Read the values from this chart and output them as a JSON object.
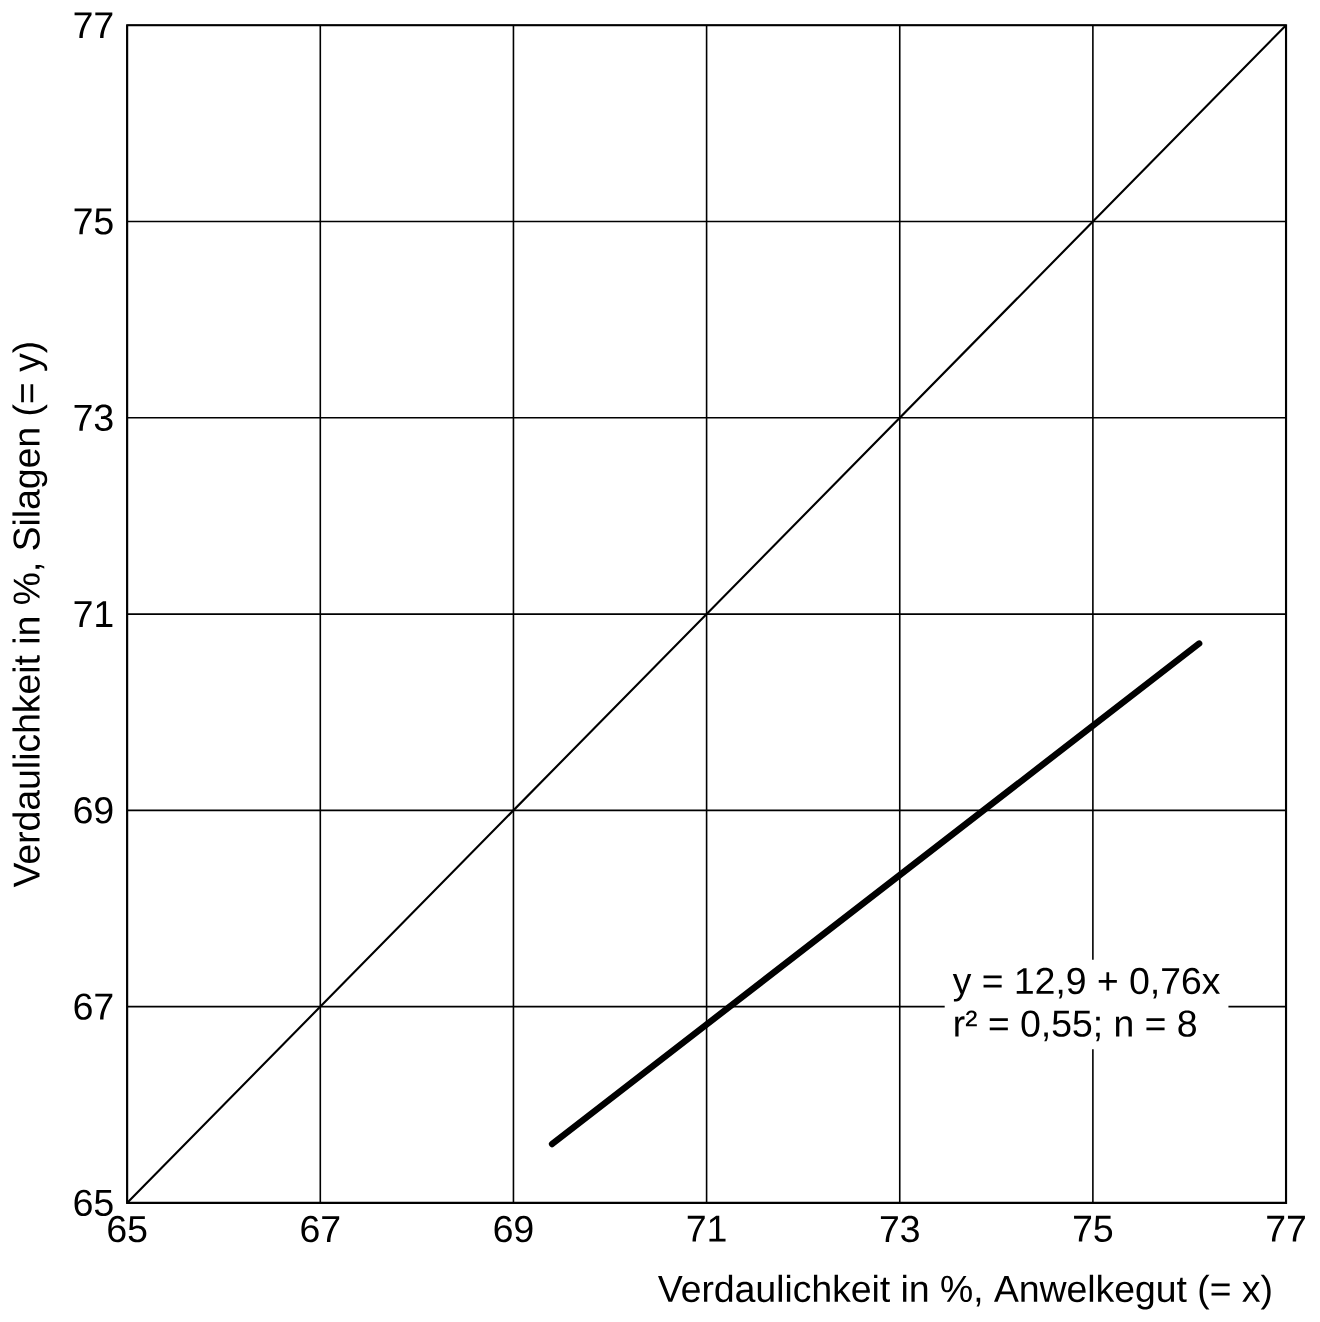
{
  "chart_data": {
    "type": "line",
    "xlabel": "Verdaulichkeit in %, Anwelkegut (= x)",
    "ylabel": "Verdaulichkeit in %, Silagen (= y)",
    "xlim": [
      65,
      77
    ],
    "ylim": [
      65,
      77
    ],
    "xticks": [
      65,
      67,
      69,
      71,
      73,
      75,
      77
    ],
    "yticks": [
      65,
      67,
      69,
      71,
      73,
      75,
      77
    ],
    "grid": true,
    "marker": "none",
    "series": [
      {
        "color": "#000000",
        "x": [
          65,
          77
        ],
        "values": [
          65,
          77
        ]
      },
      {
        "color": "#000000",
        "x": [
          69.4,
          76.1
        ],
        "values": [
          65.6,
          70.7
        ]
      }
    ],
    "annotations": [
      "y = 12,9 + 0,76x",
      "r² = 0,55; n = 8"
    ]
  }
}
